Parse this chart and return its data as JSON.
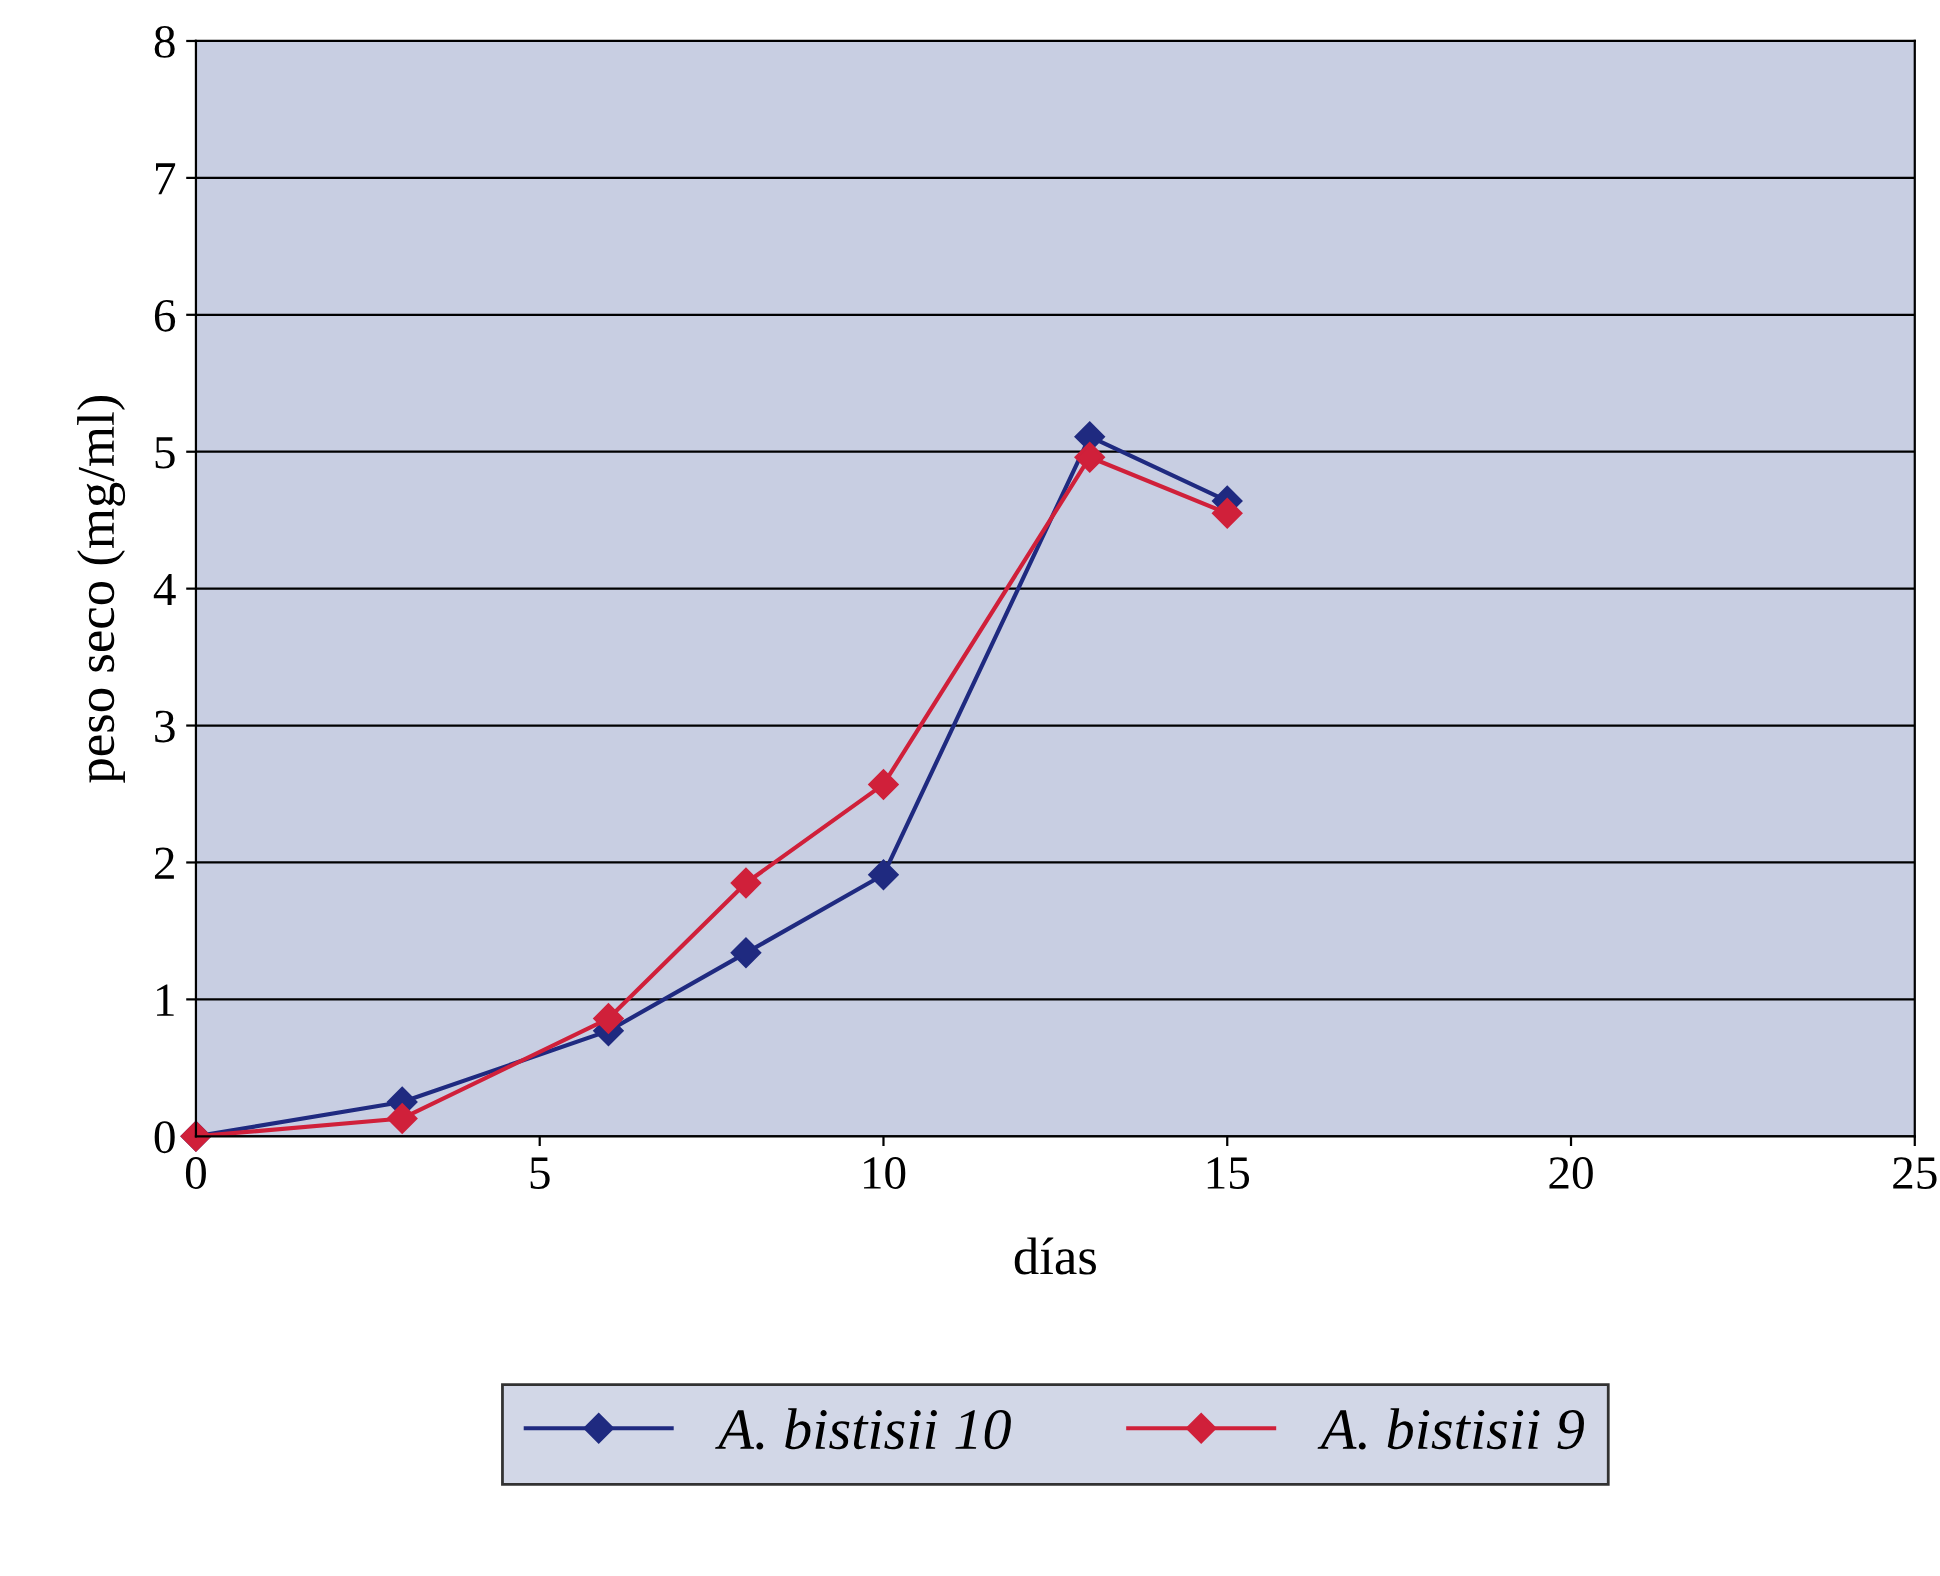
{
  "chart_data": {
    "type": "line",
    "xlabel": "días",
    "ylabel": "peso seco (mg/ml)",
    "xlim": [
      0,
      25
    ],
    "xticks": [
      0,
      5,
      10,
      15,
      20,
      25
    ],
    "ylim": [
      0,
      8
    ],
    "yticks": [
      0,
      1,
      2,
      3,
      4,
      5,
      6,
      7,
      8
    ],
    "grid": "y",
    "legend": "bottom",
    "marker": "diamond",
    "line_style": "solid",
    "series": [
      {
        "name": "A. bistisii 10",
        "color": "#1f2a80",
        "x": [
          0,
          3,
          6,
          8,
          10,
          13,
          15
        ],
        "values": [
          0,
          0.25,
          0.77,
          1.34,
          1.91,
          5.11,
          4.64
        ]
      },
      {
        "name": "A. bistisii 9",
        "color": "#d0203a",
        "x": [
          0,
          3,
          6,
          8,
          10,
          13,
          15
        ],
        "values": [
          0,
          0.13,
          0.86,
          1.85,
          2.57,
          4.96,
          4.55
        ]
      }
    ]
  }
}
